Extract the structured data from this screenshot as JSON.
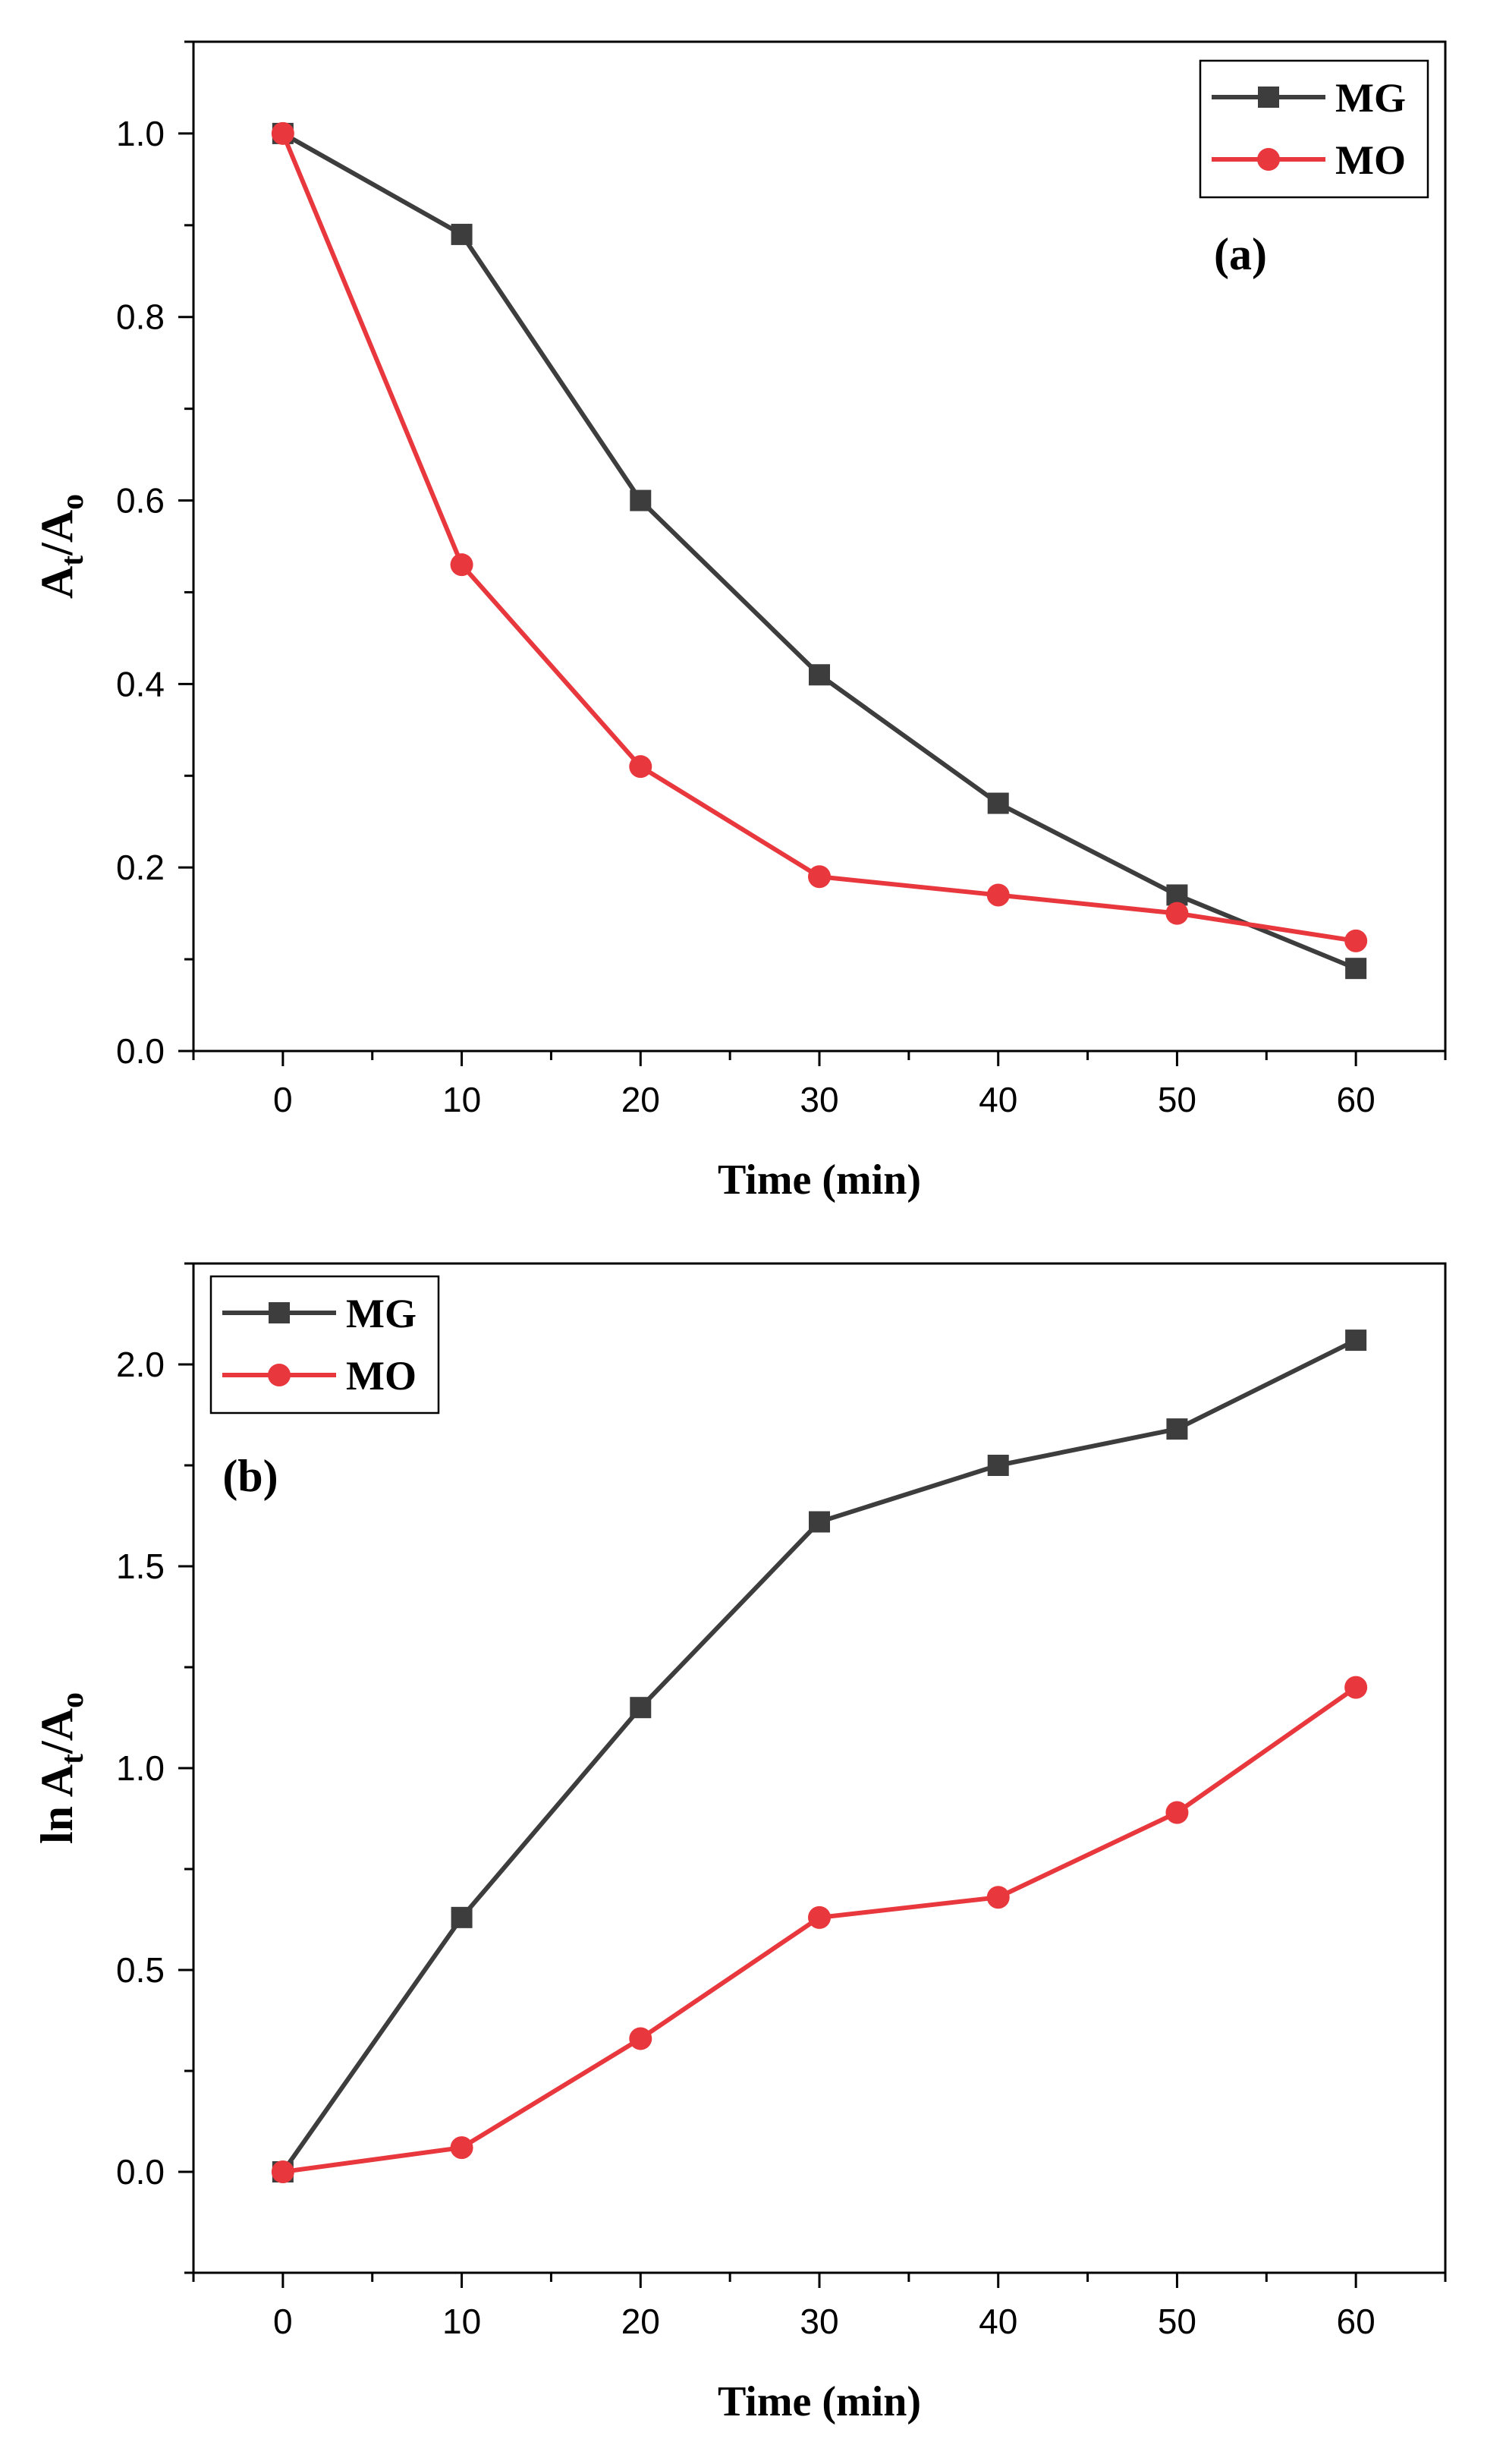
{
  "chart_data": [
    {
      "type": "line",
      "panel_label": "(a)",
      "xlabel": "Time (min)",
      "ylabel": {
        "base": "A",
        "sub1": "t",
        "slash": "/A",
        "sub2": "o"
      },
      "xlim": [
        -5,
        65
      ],
      "ylim": [
        0,
        1.1
      ],
      "xticks": [
        0,
        10,
        20,
        30,
        40,
        50,
        60
      ],
      "xtick_labels": [
        "0",
        "10",
        "20",
        "30",
        "40",
        "50",
        "60"
      ],
      "yticks": [
        0,
        0.2,
        0.4,
        0.6,
        0.8,
        1.0
      ],
      "ytick_labels": [
        "0.0",
        "0.2",
        "0.4",
        "0.6",
        "0.8",
        "1.0"
      ],
      "legend_position": "top-right",
      "grid": false,
      "x": [
        0,
        10,
        20,
        30,
        40,
        50,
        60
      ],
      "series": [
        {
          "name": "MG",
          "marker": "square",
          "color": "#3d3d3d",
          "values": [
            1.0,
            0.89,
            0.6,
            0.41,
            0.27,
            0.17,
            0.09
          ]
        },
        {
          "name": "MO",
          "marker": "circle",
          "color": "#e8383d",
          "values": [
            1.0,
            0.53,
            0.31,
            0.19,
            0.17,
            0.15,
            0.12
          ]
        }
      ]
    },
    {
      "type": "line",
      "panel_label": "(b)",
      "xlabel": "Time (min)",
      "ylabel": {
        "base": "ln A",
        "sub1": "t",
        "slash": "/A",
        "sub2": "o"
      },
      "xlim": [
        -5,
        65
      ],
      "ylim": [
        -0.25,
        2.25
      ],
      "xticks": [
        0,
        10,
        20,
        30,
        40,
        50,
        60
      ],
      "xtick_labels": [
        "0",
        "10",
        "20",
        "30",
        "40",
        "50",
        "60"
      ],
      "yticks": [
        0,
        0.5,
        1.0,
        1.5,
        2.0
      ],
      "ytick_labels": [
        "0.0",
        "0.5",
        "1.0",
        "1.5",
        "2.0"
      ],
      "legend_position": "top-left",
      "grid": false,
      "x": [
        0,
        10,
        20,
        30,
        40,
        50,
        60
      ],
      "series": [
        {
          "name": "MG",
          "marker": "square",
          "color": "#3d3d3d",
          "values": [
            0.0,
            0.63,
            1.15,
            1.61,
            1.75,
            1.84,
            2.06
          ]
        },
        {
          "name": "MO",
          "marker": "circle",
          "color": "#e8383d",
          "values": [
            0.0,
            0.06,
            0.33,
            0.63,
            0.68,
            0.89,
            1.2
          ]
        }
      ]
    }
  ]
}
